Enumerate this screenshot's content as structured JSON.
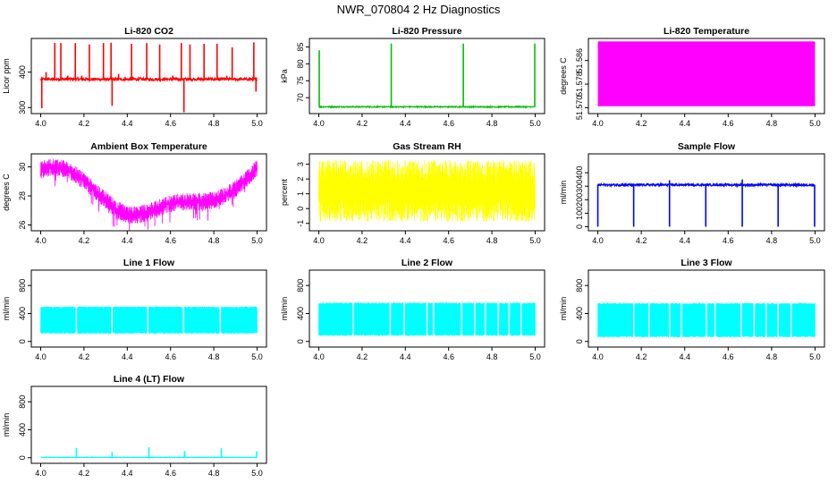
{
  "main_title": "NWR_070804  2 Hz Diagnostics",
  "chart_data": [
    {
      "id": "co2",
      "type": "line",
      "title": "Li-820 CO2",
      "xlabel": "",
      "ylabel": "Licor ppm",
      "color": "#ff0000",
      "xlim": [
        4.0,
        5.0
      ],
      "ylim": [
        283,
        495
      ],
      "xticks": [
        4.0,
        4.2,
        4.4,
        4.6,
        4.8,
        5.0
      ],
      "xtick_labels": [
        "4.0",
        "4.2",
        "4.4",
        "4.6",
        "4.8",
        "5.0"
      ],
      "yticks": [
        300,
        400
      ],
      "ytick_labels": [
        "300",
        "400"
      ],
      "baseline": 380,
      "noise": 4,
      "spikes": [
        {
          "x": 4.005,
          "y": 298
        },
        {
          "x": 4.025,
          "y": 400
        },
        {
          "x": 4.065,
          "y": 482
        },
        {
          "x": 4.093,
          "y": 482
        },
        {
          "x": 4.125,
          "y": 390
        },
        {
          "x": 4.16,
          "y": 482
        },
        {
          "x": 4.19,
          "y": 390
        },
        {
          "x": 4.225,
          "y": 478
        },
        {
          "x": 4.29,
          "y": 482
        },
        {
          "x": 4.325,
          "y": 483
        },
        {
          "x": 4.33,
          "y": 305
        },
        {
          "x": 4.36,
          "y": 395
        },
        {
          "x": 4.42,
          "y": 480
        },
        {
          "x": 4.49,
          "y": 482
        },
        {
          "x": 4.55,
          "y": 478
        },
        {
          "x": 4.61,
          "y": 390
        },
        {
          "x": 4.65,
          "y": 482
        },
        {
          "x": 4.662,
          "y": 287
        },
        {
          "x": 4.69,
          "y": 478
        },
        {
          "x": 4.755,
          "y": 480
        },
        {
          "x": 4.815,
          "y": 480
        },
        {
          "x": 4.86,
          "y": 390
        },
        {
          "x": 4.885,
          "y": 470
        },
        {
          "x": 4.985,
          "y": 484
        },
        {
          "x": 4.995,
          "y": 345
        }
      ]
    },
    {
      "id": "pressure",
      "type": "line",
      "title": "Li-820 Pressure",
      "xlabel": "",
      "ylabel": "kPa",
      "color": "#00c000",
      "xlim": [
        4.0,
        5.0
      ],
      "ylim": [
        65.3,
        87.5
      ],
      "xticks": [
        4.0,
        4.2,
        4.4,
        4.6,
        4.8,
        5.0
      ],
      "xtick_labels": [
        "4.0",
        "4.2",
        "4.4",
        "4.6",
        "4.8",
        "5.0"
      ],
      "yticks": [
        70,
        75,
        80,
        85
      ],
      "ytick_labels": [
        "70",
        "75",
        "80",
        "85"
      ],
      "baseline": 67.3,
      "noise": 0.15,
      "spikes": [
        {
          "x": 4.002,
          "y": 84
        },
        {
          "x": 4.335,
          "y": 86
        },
        {
          "x": 4.668,
          "y": 86
        },
        {
          "x": 4.998,
          "y": 86
        }
      ]
    },
    {
      "id": "licor_temp",
      "type": "area",
      "title": "Li-820 Temperature",
      "xlabel": "",
      "ylabel": "degrees C",
      "color": "#ff00ff",
      "xlim": [
        4.0,
        5.0
      ],
      "ylim": [
        51.568,
        51.5935
      ],
      "fill_range": [
        51.5705,
        51.5925
      ],
      "xticks": [
        4.0,
        4.2,
        4.4,
        4.6,
        4.8,
        5.0
      ],
      "xtick_labels": [
        "4.0",
        "4.2",
        "4.4",
        "4.6",
        "4.8",
        "5.0"
      ],
      "yticks": [
        51.57,
        51.578,
        51.586
      ],
      "ytick_labels": [
        "51.570",
        "51.578",
        "51.586"
      ]
    },
    {
      "id": "ambient_temp",
      "type": "line",
      "title": "Ambient Box Temperature",
      "xlabel": "",
      "ylabel": "degrees C",
      "color": "#ff00ff",
      "xlim": [
        4.0,
        5.0
      ],
      "ylim": [
        25.6,
        30.9
      ],
      "xticks": [
        4.0,
        4.2,
        4.4,
        4.6,
        4.8,
        5.0
      ],
      "xtick_labels": [
        "4.0",
        "4.2",
        "4.4",
        "4.6",
        "4.8",
        "5.0"
      ],
      "yticks": [
        26,
        28,
        30
      ],
      "ytick_labels": [
        "26",
        "28",
        "30"
      ],
      "curve_x": [
        4.0,
        4.05,
        4.1,
        4.15,
        4.2,
        4.25,
        4.3,
        4.35,
        4.4,
        4.45,
        4.5,
        4.55,
        4.6,
        4.65,
        4.7,
        4.75,
        4.8,
        4.85,
        4.9,
        4.95,
        5.0
      ],
      "curve_y": [
        29.8,
        30.0,
        29.9,
        29.6,
        29.0,
        28.4,
        27.7,
        27.1,
        26.7,
        26.7,
        26.9,
        27.2,
        27.5,
        27.6,
        27.6,
        27.6,
        27.7,
        28.0,
        28.5,
        29.2,
        29.9
      ],
      "noise": 0.6
    },
    {
      "id": "rh",
      "type": "line",
      "title": "Gas Stream RH",
      "xlabel": "",
      "ylabel": "percent",
      "color": "#ffff00",
      "xlim": [
        4.0,
        5.0
      ],
      "ylim": [
        -1.5,
        3.7
      ],
      "xticks": [
        4.0,
        4.2,
        4.4,
        4.6,
        4.8,
        5.0
      ],
      "xtick_labels": [
        "4.0",
        "4.2",
        "4.4",
        "4.6",
        "4.8",
        "5.0"
      ],
      "yticks": [
        -1,
        0,
        1,
        2,
        3
      ],
      "ytick_labels": [
        "-1",
        "0",
        "1",
        "2",
        "3"
      ],
      "band_low": -0.9,
      "band_high": 3.3
    },
    {
      "id": "sample_flow",
      "type": "line",
      "title": "Sample Flow",
      "xlabel": "",
      "ylabel": "ml/min",
      "color": "#0000ff",
      "xlim": [
        4.0,
        5.0
      ],
      "ylim": [
        -30,
        540
      ],
      "xticks": [
        4.0,
        4.2,
        4.4,
        4.6,
        4.8,
        5.0
      ],
      "xtick_labels": [
        "4.0",
        "4.2",
        "4.4",
        "4.6",
        "4.8",
        "5.0"
      ],
      "yticks": [
        0,
        100,
        200,
        300,
        400
      ],
      "ytick_labels": [
        "0",
        "100",
        "200",
        "300",
        "400"
      ],
      "baseline": 310,
      "noise": 8,
      "dips": [
        4.0,
        4.165,
        4.33,
        4.497,
        4.665,
        4.83,
        4.998
      ],
      "dip_level": 0,
      "spikes_up": [
        {
          "x": 4.33,
          "y": 345
        },
        {
          "x": 4.665,
          "y": 350
        }
      ]
    },
    {
      "id": "line1",
      "type": "line",
      "title": "Line 1 Flow",
      "xlabel": "",
      "ylabel": "ml/min",
      "color": "#00ffff",
      "xlim": [
        4.0,
        5.0
      ],
      "ylim": [
        -80,
        1020
      ],
      "xticks": [
        4.0,
        4.2,
        4.4,
        4.6,
        4.8,
        5.0
      ],
      "xtick_labels": [
        "4.0",
        "4.2",
        "4.4",
        "4.6",
        "4.8",
        "5.0"
      ],
      "yticks": [
        0,
        400,
        800
      ],
      "ytick_labels": [
        "0",
        "400",
        "800"
      ],
      "band_low": 110,
      "band_high": 500,
      "gaps": [
        4.165,
        4.33,
        4.495,
        4.66,
        4.83
      ]
    },
    {
      "id": "line2",
      "type": "line",
      "title": "Line 2 Flow",
      "xlabel": "",
      "ylabel": "ml/min",
      "color": "#00ffff",
      "xlim": [
        4.0,
        5.0
      ],
      "ylim": [
        -80,
        1020
      ],
      "xticks": [
        4.0,
        4.2,
        4.4,
        4.6,
        4.8,
        5.0
      ],
      "xtick_labels": [
        "4.0",
        "4.2",
        "4.4",
        "4.6",
        "4.8",
        "5.0"
      ],
      "yticks": [
        0,
        400,
        800
      ],
      "ytick_labels": [
        "0",
        "400",
        "800"
      ],
      "band_low": 80,
      "band_high": 555,
      "gaps": [
        4.16,
        4.33,
        4.395,
        4.5,
        4.53,
        4.66,
        4.72,
        4.77,
        4.83,
        4.88,
        4.935
      ]
    },
    {
      "id": "line3",
      "type": "line",
      "title": "Line 3 Flow",
      "xlabel": "",
      "ylabel": "ml/min",
      "color": "#00ffff",
      "xlim": [
        4.0,
        5.0
      ],
      "ylim": [
        -80,
        1020
      ],
      "xticks": [
        4.0,
        4.2,
        4.4,
        4.6,
        4.8,
        5.0
      ],
      "xtick_labels": [
        "4.0",
        "4.2",
        "4.4",
        "4.6",
        "4.8",
        "5.0"
      ],
      "yticks": [
        0,
        400,
        800
      ],
      "ytick_labels": [
        "0",
        "400",
        "800"
      ],
      "band_low": 60,
      "band_high": 550,
      "gaps": [
        4.165,
        4.235,
        4.33,
        4.385,
        4.5,
        4.54,
        4.66,
        4.72,
        4.775,
        4.83,
        4.89
      ]
    },
    {
      "id": "line4",
      "type": "line",
      "title": "Line 4 (LT) Flow",
      "xlabel": "",
      "ylabel": "ml/min",
      "color": "#00ffff",
      "xlim": [
        4.0,
        5.0
      ],
      "ylim": [
        -80,
        1020
      ],
      "xticks": [
        4.0,
        4.2,
        4.4,
        4.6,
        4.8,
        5.0
      ],
      "xtick_labels": [
        "4.0",
        "4.2",
        "4.4",
        "4.6",
        "4.8",
        "5.0"
      ],
      "yticks": [
        0,
        400,
        800
      ],
      "ytick_labels": [
        "0",
        "400",
        "800"
      ],
      "baseline": 5,
      "noise": 3,
      "spikes": [
        {
          "x": 4.165,
          "y": 140
        },
        {
          "x": 4.33,
          "y": 80
        },
        {
          "x": 4.5,
          "y": 150
        },
        {
          "x": 4.665,
          "y": 95
        },
        {
          "x": 4.835,
          "y": 135
        },
        {
          "x": 4.998,
          "y": 90
        }
      ]
    }
  ]
}
